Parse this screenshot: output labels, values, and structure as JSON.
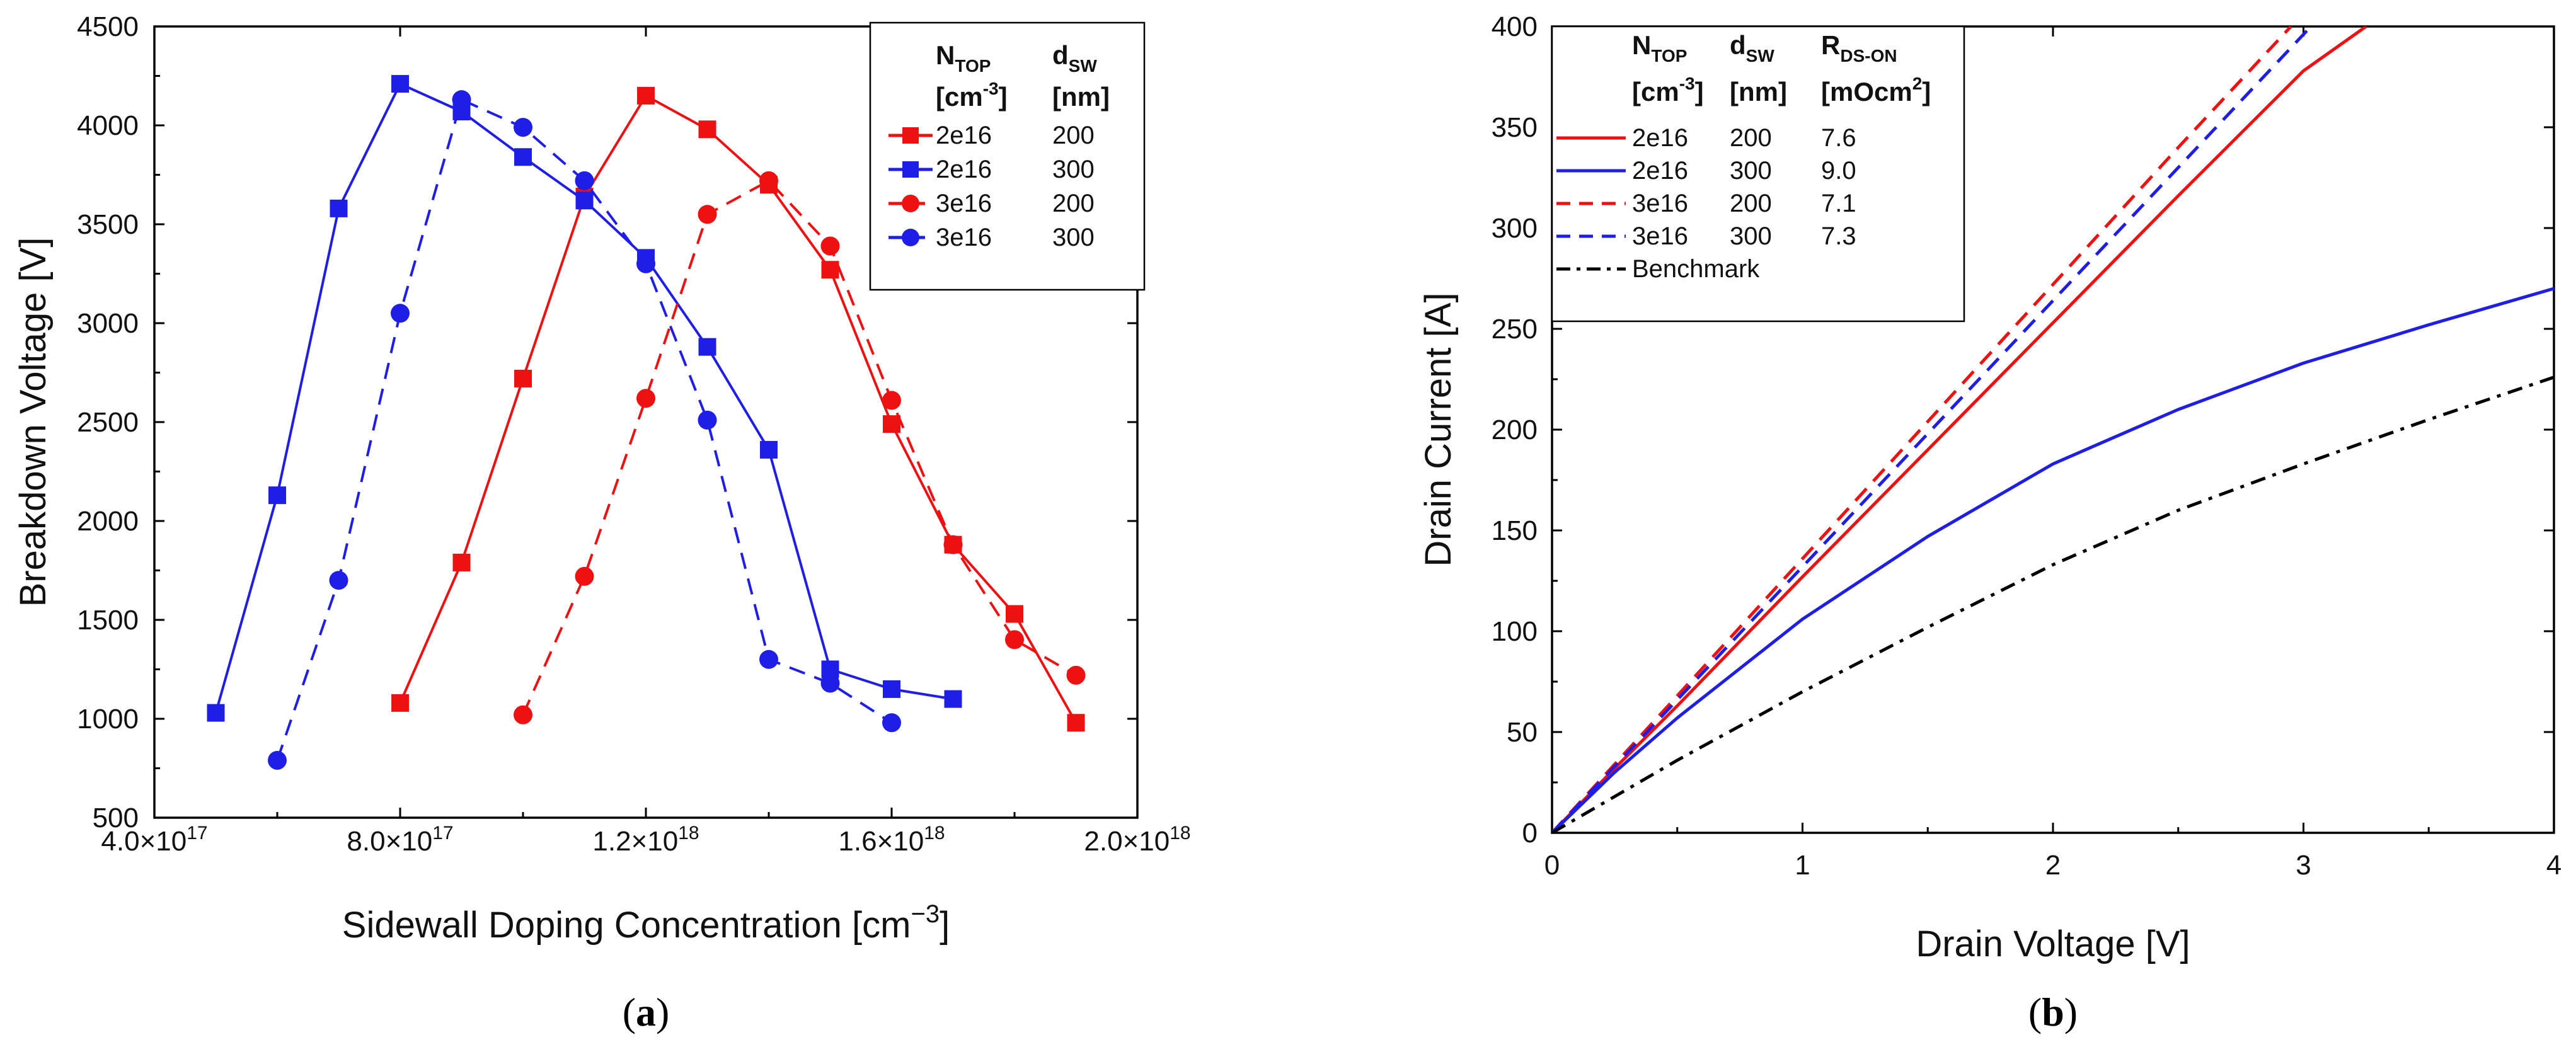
{
  "colors": {
    "red": "#ee1111",
    "blue": "#1e1ee6",
    "black": "#000000"
  },
  "charts": [
    {
      "id": "a",
      "caption": {
        "open": "(",
        "letter": "a",
        "close": ")"
      },
      "type": "line",
      "title": "",
      "xlabel": {
        "main": "Sidewall Doping Concentration [cm",
        "sup": "−3",
        "end": "]"
      },
      "ylabel": "Breakdown Voltage [V]",
      "xlim": [
        4e+17,
        2e+18
      ],
      "ylim": [
        500,
        4500
      ],
      "x_ticks": [
        {
          "value": 4e+17,
          "mant": "4.0×10",
          "exp": "17"
        },
        {
          "value": 8e+17,
          "mant": "8.0×10",
          "exp": "17"
        },
        {
          "value": 1.2e+18,
          "mant": "1.2×10",
          "exp": "18"
        },
        {
          "value": 1.6e+18,
          "mant": "1.6×10",
          "exp": "18"
        },
        {
          "value": 2e+18,
          "mant": "2.0×10",
          "exp": "18"
        }
      ],
      "y_ticks": [
        500,
        1000,
        1500,
        2000,
        2500,
        3000,
        3500,
        4000,
        4500
      ],
      "legend": {
        "position": "top-right",
        "headers": [
          {
            "main": "N",
            "sub": "TOP",
            "unit_main": "[cm",
            "unit_sup": "-3",
            "unit_end": "]"
          },
          {
            "main": "d",
            "sub": "SW",
            "unit_main": "[nm]",
            "unit_sup": "",
            "unit_end": ""
          }
        ]
      },
      "series": [
        {
          "name": "2e16 / 200",
          "ntop": "2e16",
          "dsw": "200",
          "color": "red",
          "dashed": false,
          "marker": "square",
          "x": [
            8e+17,
            9e+17,
            1e+18,
            1.1e+18,
            1.2e+18,
            1.3e+18,
            1.4e+18,
            1.5e+18,
            1.6e+18,
            1.7e+18,
            1.8e+18,
            1.9e+18
          ],
          "y": [
            1080,
            1790,
            2720,
            3640,
            4150,
            3980,
            3700,
            3270,
            2490,
            1880,
            1530,
            980
          ]
        },
        {
          "name": "2e16 / 300",
          "ntop": "2e16",
          "dsw": "300",
          "color": "blue",
          "dashed": false,
          "marker": "square",
          "x": [
            5e+17,
            6e+17,
            7e+17,
            8e+17,
            9e+17,
            1e+18,
            1.1e+18,
            1.2e+18,
            1.3e+18,
            1.4e+18,
            1.5e+18,
            1.6e+18,
            1.7e+18
          ],
          "y": [
            1030,
            2130,
            3580,
            4210,
            4070,
            3840,
            3620,
            3330,
            2880,
            2360,
            1250,
            1150,
            1100
          ]
        },
        {
          "name": "3e16 / 200",
          "ntop": "3e16",
          "dsw": "200",
          "color": "red",
          "dashed": true,
          "marker": "circle",
          "x": [
            1e+18,
            1.1e+18,
            1.2e+18,
            1.3e+18,
            1.4e+18,
            1.5e+18,
            1.6e+18,
            1.7e+18,
            1.8e+18,
            1.9e+18
          ],
          "y": [
            1020,
            1720,
            2620,
            3550,
            3720,
            3390,
            2610,
            1880,
            1400,
            1220
          ]
        },
        {
          "name": "3e16 / 300",
          "ntop": "3e16",
          "dsw": "300",
          "color": "blue",
          "dashed": true,
          "marker": "circle",
          "x": [
            6e+17,
            7e+17,
            8e+17,
            9e+17,
            1e+18,
            1.1e+18,
            1.2e+18,
            1.3e+18,
            1.4e+18,
            1.5e+18,
            1.6e+18
          ],
          "y": [
            790,
            1700,
            3050,
            4130,
            3990,
            3720,
            3300,
            2510,
            1300,
            1180,
            980
          ]
        }
      ]
    },
    {
      "id": "b",
      "caption": {
        "open": "(",
        "letter": "b",
        "close": ")"
      },
      "type": "line",
      "title": "",
      "xlabel": {
        "main": "Drain Voltage [V]",
        "sup": "",
        "end": ""
      },
      "ylabel": "Drain Current [A]",
      "xlim": [
        0,
        4
      ],
      "ylim": [
        0,
        400
      ],
      "x_ticks": [
        {
          "value": 0,
          "mant": "0",
          "exp": ""
        },
        {
          "value": 1,
          "mant": "1",
          "exp": ""
        },
        {
          "value": 2,
          "mant": "2",
          "exp": ""
        },
        {
          "value": 3,
          "mant": "3",
          "exp": ""
        },
        {
          "value": 4,
          "mant": "4",
          "exp": ""
        }
      ],
      "y_ticks": [
        0,
        50,
        100,
        150,
        200,
        250,
        300,
        350,
        400
      ],
      "legend": {
        "position": "top-left",
        "headers": [
          {
            "main": "N",
            "sub": "TOP",
            "unit_main": "[cm",
            "unit_sup": "-3",
            "unit_end": "]"
          },
          {
            "main": "d",
            "sub": "SW",
            "unit_main": "[nm]",
            "unit_sup": "",
            "unit_end": ""
          },
          {
            "main": "R",
            "sub": "DS-ON",
            "unit_main": "[mOcm",
            "unit_sup": "2",
            "unit_end": "]"
          }
        ]
      },
      "series": [
        {
          "name": "2e16 / 200 / 7.6",
          "ntop": "2e16",
          "dsw": "200",
          "rds": "7.6",
          "color": "red",
          "dash": "solid",
          "x": [
            0,
            0.25,
            0.5,
            1.0,
            1.5,
            2.0,
            2.5,
            3.0,
            3.25
          ],
          "y": [
            0,
            32,
            63,
            127,
            190,
            253,
            316,
            378,
            400
          ]
        },
        {
          "name": "2e16 / 300 / 9.0",
          "ntop": "2e16",
          "dsw": "300",
          "rds": "9.0",
          "color": "blue",
          "dash": "solid",
          "x": [
            0,
            0.25,
            0.5,
            1.0,
            1.5,
            2.0,
            2.5,
            3.0,
            3.5,
            4.0
          ],
          "y": [
            0,
            30,
            57,
            106,
            147,
            183,
            210,
            233,
            252,
            270
          ]
        },
        {
          "name": "3e16 / 200 / 7.1",
          "ntop": "3e16",
          "dsw": "200",
          "rds": "7.1",
          "color": "red",
          "dash": "dashed",
          "x": [
            0,
            0.25,
            0.5,
            1.0,
            1.5,
            2.0,
            2.5,
            2.95
          ],
          "y": [
            0,
            34,
            68,
            136,
            204,
            272,
            340,
            400
          ]
        },
        {
          "name": "3e16 / 300 / 7.3",
          "ntop": "3e16",
          "dsw": "300",
          "rds": "7.3",
          "color": "blue",
          "dash": "dashed",
          "x": [
            0,
            0.25,
            0.5,
            1.0,
            1.5,
            2.0,
            2.5,
            3.03
          ],
          "y": [
            0,
            33,
            66,
            132,
            198,
            264,
            330,
            400
          ]
        },
        {
          "name": "Benchmark",
          "label": "Benchmark",
          "color": "black",
          "dash": "dashdot",
          "x": [
            0,
            0.5,
            1.0,
            1.5,
            2.0,
            2.5,
            3.0,
            3.5,
            4.0
          ],
          "y": [
            0,
            36,
            70,
            102,
            133,
            160,
            183,
            205,
            226
          ]
        }
      ]
    }
  ]
}
